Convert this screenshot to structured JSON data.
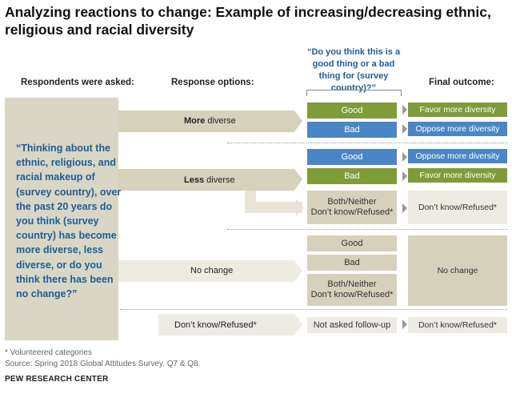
{
  "title": "Analyzing reactions to change: Example of increasing/decreasing ethnic, religious and racial diversity",
  "headers": {
    "respondents": "Respondents were asked:",
    "response_options": "Response options:",
    "followup_question": "“Do you think this is a good thing or a bad thing for (survey country)?”",
    "final_outcome": "Final outcome:"
  },
  "question": "“Thinking about the ethnic, religious, and racial makeup of (survey country), over the past 20 years do you think (survey country) has become more diverse, less diverse, or do you think there has been no change?”",
  "responses": {
    "more_bold": "More",
    "more_rest": " diverse",
    "less_bold": "Less",
    "less_rest": " diverse",
    "no_change": "No change",
    "dont_know": "Don’t know/Refused*"
  },
  "followups": {
    "more_good": "Good",
    "more_bad": "Bad",
    "less_good": "Good",
    "less_bad": "Bad",
    "less_both_line1": "Both/Neither",
    "less_both_line2": "Don’t know/Refused*",
    "nc_good": "Good",
    "nc_bad": "Bad",
    "nc_both_line1": "Both/Neither",
    "nc_both_line2": "Don’t know/Refused*",
    "dk_not_asked": "Not asked follow-up"
  },
  "outcomes": {
    "more_good": "Favor more diversity",
    "more_bad": "Oppose more diversity",
    "less_good": "Oppose more diversity",
    "less_bad": "Favor more diversity",
    "less_both": "Don’t know/Refused*",
    "no_change": "No change",
    "dont_know": "Don’t know/Refused*"
  },
  "footer": {
    "note": "* Volunteered categories",
    "source": "Source: Spring 2018 Global Attitudes Survey. Q7 & Q8.",
    "brand": "PEW RESEARCH CENTER"
  },
  "colors": {
    "olive": "#7f9b3a",
    "blue": "#4a86c6",
    "tan": "#d6d1bb",
    "light": "#edebe2",
    "quote_blue": "#1f5c99"
  }
}
